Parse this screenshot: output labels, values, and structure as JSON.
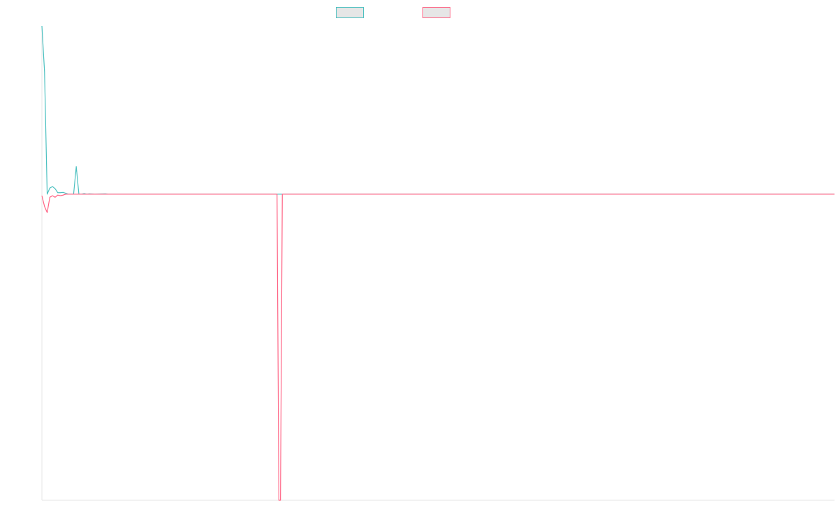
{
  "colors": {
    "series_a": "#4bc0c0",
    "series_b": "#ff6384",
    "legend_fill": "#e6e6e6",
    "axis": "#e5e5e5",
    "background": "#ffffff"
  },
  "chart_data": {
    "type": "line",
    "title": "",
    "xlabel": "",
    "ylabel": "",
    "grid": false,
    "legend_position": "top",
    "x_range": [
      0,
      300
    ],
    "ylim": [
      -1,
      0.55
    ],
    "series": [
      {
        "name": "",
        "color": "#4bc0c0",
        "points": [
          [
            0,
            0.55
          ],
          [
            1,
            0.4
          ],
          [
            2,
            0.0
          ],
          [
            3,
            0.02
          ],
          [
            4,
            0.025
          ],
          [
            5,
            0.018
          ],
          [
            6,
            0.005
          ],
          [
            7,
            0.005
          ],
          [
            8,
            0.006
          ],
          [
            9,
            0.003
          ],
          [
            10,
            0.0
          ],
          [
            11,
            0.0
          ],
          [
            12,
            0.0
          ],
          [
            13,
            0.09
          ],
          [
            14,
            0.0
          ],
          [
            15,
            0.0
          ],
          [
            16,
            0.002
          ],
          [
            17,
            0.0
          ],
          [
            18,
            0.001
          ],
          [
            20,
            0.0
          ],
          [
            24,
            0.001
          ],
          [
            25,
            0.0
          ],
          [
            300,
            0.0
          ]
        ]
      },
      {
        "name": "",
        "color": "#ff6384",
        "points": [
          [
            0,
            -0.005
          ],
          [
            1,
            -0.04
          ],
          [
            2,
            -0.06
          ],
          [
            3,
            -0.01
          ],
          [
            4,
            -0.005
          ],
          [
            5,
            -0.01
          ],
          [
            6,
            -0.003
          ],
          [
            7,
            -0.005
          ],
          [
            8,
            -0.003
          ],
          [
            9,
            0.0
          ],
          [
            10,
            0.0
          ],
          [
            14,
            0.0
          ],
          [
            20,
            0.0
          ],
          [
            89,
            0.0
          ],
          [
            89.7,
            -1.0
          ],
          [
            90.3,
            -1.0
          ],
          [
            91,
            0.0
          ],
          [
            300,
            0.0
          ]
        ]
      }
    ]
  }
}
